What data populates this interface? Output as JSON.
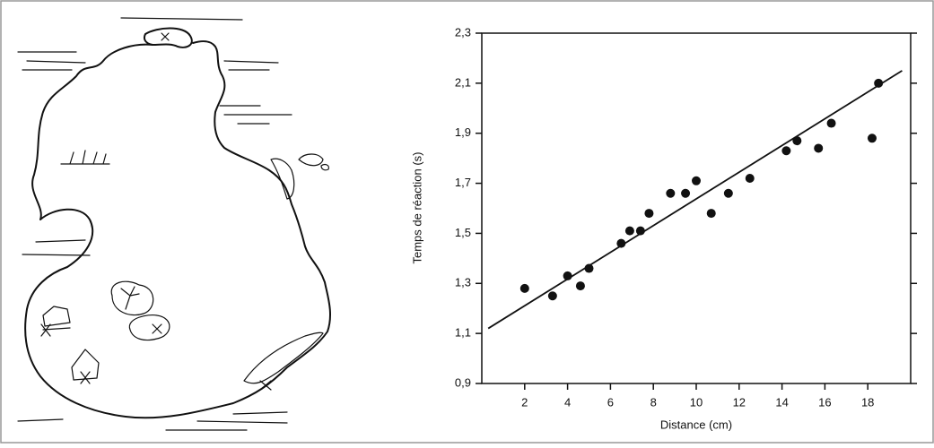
{
  "chart_data": {
    "type": "scatter",
    "x_label": "Distance (cm)",
    "y_label": "Temps de réaction (s)",
    "x": [
      2.0,
      3.3,
      4.0,
      4.6,
      5.0,
      6.5,
      6.9,
      7.4,
      7.8,
      8.8,
      9.5,
      10.0,
      10.7,
      11.5,
      12.5,
      14.2,
      14.7,
      15.7,
      16.3,
      18.2,
      18.5
    ],
    "values": [
      1.28,
      1.25,
      1.33,
      1.29,
      1.36,
      1.46,
      1.51,
      1.51,
      1.58,
      1.66,
      1.66,
      1.71,
      1.58,
      1.66,
      1.72,
      1.83,
      1.87,
      1.84,
      1.94,
      1.88,
      2.1
    ],
    "color": "#111111",
    "trend_line": {
      "x": [
        0.3,
        19.6
      ],
      "values": [
        1.12,
        2.15
      ]
    },
    "xlim": [
      0,
      20
    ],
    "ylim": [
      0.9,
      2.3
    ],
    "xticks": [
      2,
      4,
      6,
      8,
      10,
      12,
      14,
      16,
      18
    ],
    "yticks": [
      {
        "value": 0.9,
        "label": "0,9"
      },
      {
        "value": 1.1,
        "label": "1,1"
      },
      {
        "value": 1.3,
        "label": "1,3"
      },
      {
        "value": 1.5,
        "label": "1,5"
      },
      {
        "value": 1.7,
        "label": "1,7"
      },
      {
        "value": 1.9,
        "label": "1,9"
      },
      {
        "value": 2.1,
        "label": "2,1"
      },
      {
        "value": 2.3,
        "label": "2,3"
      }
    ]
  }
}
